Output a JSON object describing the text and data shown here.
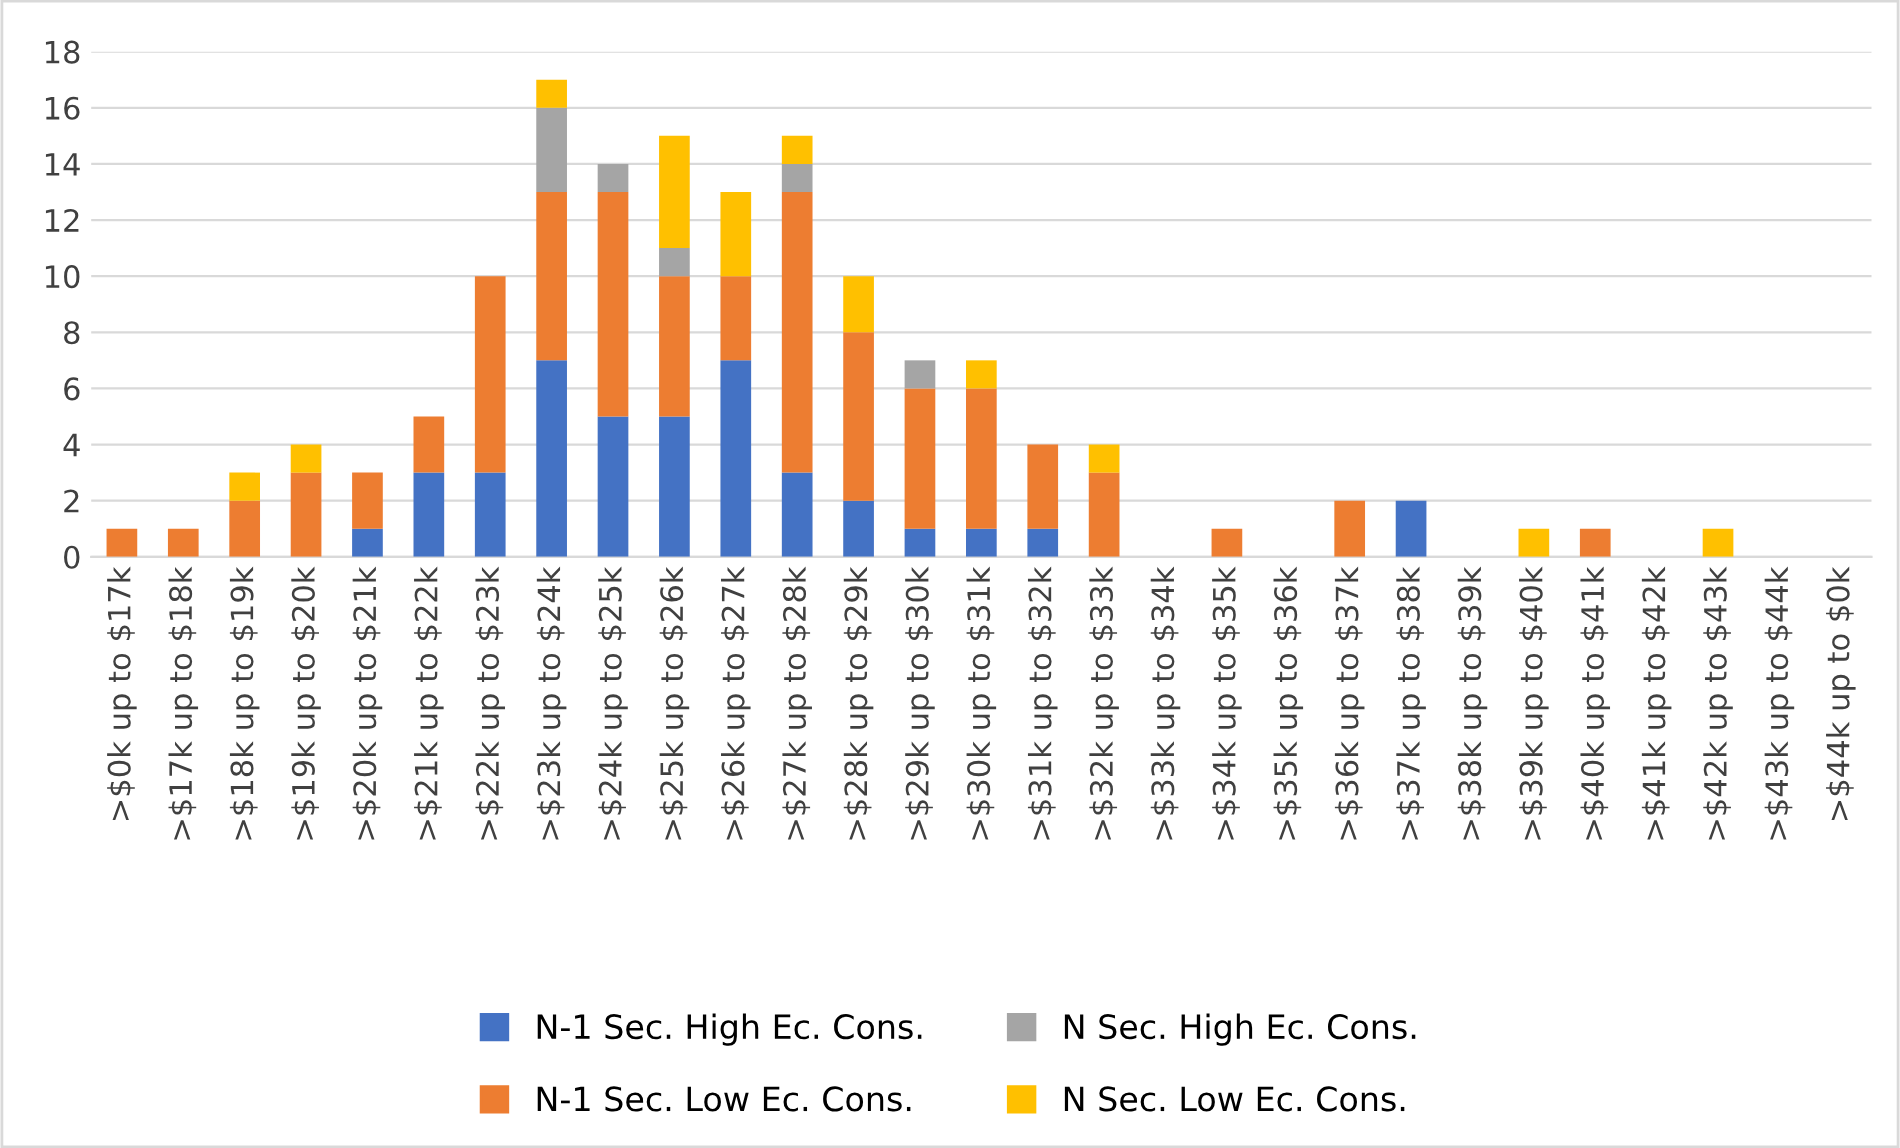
{
  "chart_data": {
    "type": "bar",
    "stacked": true,
    "categories": [
      ">$0k up to $17k",
      ">$17k up to $18k",
      ">$18k up to $19k",
      ">$19k up to $20k",
      ">$20k up to $21k",
      ">$21k up to $22k",
      ">$22k up to $23k",
      ">$23k up to $24k",
      ">$24k up to $25k",
      ">$25k up to $26k",
      ">$26k up to $27k",
      ">$27k up to $28k",
      ">$28k up to $29k",
      ">$29k up to $30k",
      ">$30k up to $31k",
      ">$31k up to $32k",
      ">$32k up to $33k",
      ">$33k up to $34k",
      ">$34k up to $35k",
      ">$35k up to $36k",
      ">$36k up to $37k",
      ">$37k up to $38k",
      ">$38k up to $39k",
      ">$39k up to $40k",
      ">$40k up to $41k",
      ">$41k up to $42k",
      ">$42k up to $43k",
      ">$43k up to $44k",
      ">$44k up to $0k"
    ],
    "series": [
      {
        "name": "N-1 Sec. High Ec. Cons.",
        "color": "#4472c4",
        "values": [
          0,
          0,
          0,
          0,
          1,
          3,
          3,
          7,
          5,
          5,
          7,
          3,
          2,
          1,
          1,
          1,
          0,
          0,
          0,
          0,
          0,
          2,
          0,
          0,
          0,
          0,
          0,
          0,
          0
        ]
      },
      {
        "name": "N-1 Sec. Low Ec. Cons.",
        "color": "#ed7d31",
        "values": [
          1,
          1,
          2,
          3,
          2,
          2,
          7,
          6,
          8,
          5,
          3,
          10,
          6,
          5,
          5,
          3,
          3,
          0,
          1,
          0,
          2,
          0,
          0,
          0,
          1,
          0,
          0,
          0,
          0
        ]
      },
      {
        "name": "N Sec. High Ec. Cons.",
        "color": "#a5a5a5",
        "values": [
          0,
          0,
          0,
          0,
          0,
          0,
          0,
          3,
          1,
          1,
          0,
          1,
          0,
          1,
          0,
          0,
          0,
          0,
          0,
          0,
          0,
          0,
          0,
          0,
          0,
          0,
          0,
          0,
          0
        ]
      },
      {
        "name": "N Sec. Low Ec. Cons.",
        "color": "#ffc000",
        "values": [
          0,
          0,
          1,
          1,
          0,
          0,
          0,
          1,
          0,
          4,
          3,
          1,
          2,
          0,
          1,
          0,
          1,
          0,
          0,
          0,
          0,
          0,
          0,
          1,
          0,
          0,
          1,
          0,
          0
        ]
      }
    ],
    "ylim": [
      0,
      18
    ],
    "yticks": [
      0,
      2,
      4,
      6,
      8,
      10,
      12,
      14,
      16,
      18
    ],
    "grid": "y",
    "legend": "bottom"
  }
}
